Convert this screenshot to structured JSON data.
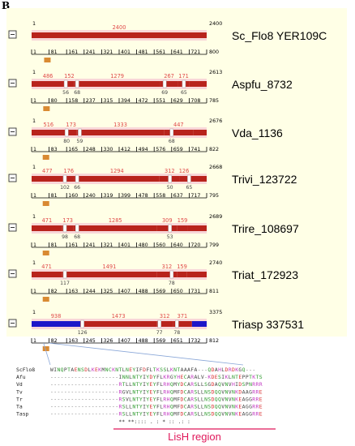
{
  "panel_label": "B",
  "colors": {
    "exon": "#b8231c",
    "exon_light": "#f8d6d8",
    "blue": "#1c16c8",
    "orange_box": "#d98a32",
    "segment_label": "#e04848",
    "green_label": "#3a9a3a",
    "lish": "#e0185a",
    "link_line": "#8aa7d8"
  },
  "genes": [
    {
      "name": "Sc_Flo8 YER109C",
      "start": "1",
      "end": "2400",
      "aa_end": "800",
      "segments": [
        {
          "label": "2400",
          "frac": 1
        }
      ],
      "introns": [],
      "ticks": [
        "1",
        "81",
        "161",
        "241",
        "321",
        "401",
        "481",
        "561",
        "641",
        "721"
      ],
      "orange_frac": 0.09
    },
    {
      "name": "Aspfu_8732",
      "start": "1",
      "end": "2613",
      "aa_end": "785",
      "segments": [
        {
          "label": "486",
          "frac": 0.186
        },
        {
          "label": "152",
          "frac": 0.058
        },
        {
          "label": "1279",
          "frac": 0.49
        },
        {
          "label": "267",
          "frac": 0.102
        },
        {
          "label": "171",
          "frac": 0.065
        }
      ],
      "introns": [
        {
          "label": "56",
          "frac": 0.195
        },
        {
          "label": "68",
          "frac": 0.26
        },
        {
          "label": "69",
          "frac": 0.76
        },
        {
          "label": "65",
          "frac": 0.87
        }
      ],
      "ticks": [
        "1",
        "80",
        "158",
        "237",
        "315",
        "394",
        "472",
        "551",
        "629",
        "708"
      ],
      "orange_frac": 0.085
    },
    {
      "name": "Vda_1136",
      "start": "1",
      "end": "2676",
      "aa_end": "822",
      "segments": [
        {
          "label": "516",
          "frac": 0.193
        },
        {
          "label": "173",
          "frac": 0.065
        },
        {
          "label": "1333",
          "frac": 0.498
        },
        {
          "label": "447",
          "frac": 0.167
        }
      ],
      "introns": [
        {
          "label": "80",
          "frac": 0.2
        },
        {
          "label": "59",
          "frac": 0.275
        },
        {
          "label": "68",
          "frac": 0.8
        }
      ],
      "ticks": [
        "1",
        "83",
        "165",
        "248",
        "330",
        "412",
        "494",
        "576",
        "659",
        "741"
      ],
      "orange_frac": 0.082
    },
    {
      "name": "Trivi_123722",
      "start": "1",
      "end": "2668",
      "aa_end": "795",
      "segments": [
        {
          "label": "477",
          "frac": 0.179
        },
        {
          "label": "176",
          "frac": 0.066
        },
        {
          "label": "1294",
          "frac": 0.485
        },
        {
          "label": "312",
          "frac": 0.117
        },
        {
          "label": "126",
          "frac": 0.047
        }
      ],
      "introns": [
        {
          "label": "102",
          "frac": 0.19
        },
        {
          "label": "66",
          "frac": 0.26
        },
        {
          "label": "50",
          "frac": 0.79
        },
        {
          "label": "65",
          "frac": 0.9
        }
      ],
      "ticks": [
        "1",
        "81",
        "160",
        "240",
        "319",
        "399",
        "478",
        "558",
        "637",
        "717"
      ],
      "orange_frac": 0.082
    },
    {
      "name": "Trire_108697",
      "start": "1",
      "end": "2689",
      "aa_end": "799",
      "segments": [
        {
          "label": "471",
          "frac": 0.175
        },
        {
          "label": "173",
          "frac": 0.064
        },
        {
          "label": "1285",
          "frac": 0.478
        },
        {
          "label": "309",
          "frac": 0.115
        },
        {
          "label": "159",
          "frac": 0.059
        }
      ],
      "introns": [
        {
          "label": "98",
          "frac": 0.19
        },
        {
          "label": "68",
          "frac": 0.26
        },
        {
          "label": "53",
          "frac": 0.79
        }
      ],
      "ticks": [
        "1",
        "81",
        "161",
        "241",
        "321",
        "401",
        "480",
        "560",
        "640",
        "720"
      ],
      "orange_frac": 0.082
    },
    {
      "name": "Triat_172923",
      "start": "1",
      "end": "2740",
      "aa_end": "811",
      "segments": [
        {
          "label": "471",
          "frac": 0.172
        },
        {
          "label": "1491",
          "frac": 0.544
        },
        {
          "label": "312",
          "frac": 0.114
        },
        {
          "label": "159",
          "frac": 0.058
        }
      ],
      "introns": [
        {
          "label": "117",
          "frac": 0.19
        },
        {
          "label": "78",
          "frac": 0.8
        }
      ],
      "ticks": [
        "1",
        "82",
        "163",
        "244",
        "325",
        "407",
        "488",
        "569",
        "650",
        "731"
      ],
      "orange_frac": 0.082
    },
    {
      "name": "Triasp 337531",
      "start": "1",
      "end": "3375",
      "aa_end": "812",
      "segments": [
        {
          "label": "938",
          "frac": 0.278
        },
        {
          "label": "1473",
          "frac": 0.436
        },
        {
          "label": "312",
          "frac": 0.092
        },
        {
          "label": "371",
          "frac": 0.11
        }
      ],
      "introns": [
        {
          "label": "126",
          "frac": 0.29
        },
        {
          "label": "77",
          "frac": 0.73
        },
        {
          "label": "78",
          "frac": 0.83
        }
      ],
      "ticks": [
        "1",
        "82",
        "163",
        "245",
        "326",
        "407",
        "488",
        "569",
        "651",
        "732"
      ],
      "orange_frac": 0.082
    }
  ],
  "alignment": {
    "rows": [
      {
        "name": "ScFlo8",
        "seq": "WINQPTAENSDLKEKMNCKNTLNEYIFDFLTKSSLKNTAAAFA---QDAHLDRDKGQ---"
      },
      {
        "name": "Afu",
        "seq": "--------------------INNLNTYIYDYFLKRGYHECARALV-KDESIKLNTEPPTKTS"
      },
      {
        "name": "Vd",
        "seq": "--------------------RTLLNTYIYEYFLRHQMYDCARSLLSGDAQVNVHIDSPNRRR"
      },
      {
        "name": "Tv",
        "seq": "--------------------RGVLNTYIYEYFLRHQMFDCARSLLNSDQQVNVNKDAAGRRE"
      },
      {
        "name": "Tr",
        "seq": "--------------------RSVLNTYIYEYFLRHQMFDCARSLLNSDQQVNVNKEAGGRRE"
      },
      {
        "name": "Ta",
        "seq": "--------------------RSLLNTYIYEYFLRHQMFDCARSLLNSDQQVNVNKEAGGRRE"
      },
      {
        "name": "Tasp",
        "seq": "--------------------RSLLNTYIYEYFLRHQMFDCARSLLNSDQQVNVNKEAGGRRE"
      }
    ],
    "consensus": "** **:::: .  : * ::         .: :",
    "region_label": "LisH region"
  }
}
